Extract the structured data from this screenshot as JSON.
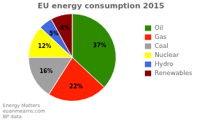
{
  "chart_data": {
    "type": "pie",
    "title": "EU energy consumption 2015",
    "categories": [
      "Oil",
      "Gas",
      "Coal",
      "Nuclear",
      "Hydro",
      "Renewables"
    ],
    "values": [
      37,
      22,
      16,
      12,
      5,
      8
    ],
    "value_labels": [
      "37%",
      "22%",
      "16%",
      "12%",
      "5%",
      "8%"
    ],
    "colors": [
      "#2e8b00",
      "#ff2200",
      "#a0a0a0",
      "#ffff00",
      "#4169e1",
      "#8b0000"
    ],
    "data_labels": true,
    "legend": "right",
    "annotations": [
      "Energy Matters",
      "euanmearns.com",
      "BP data"
    ]
  }
}
